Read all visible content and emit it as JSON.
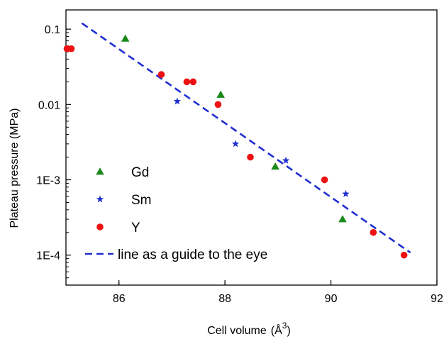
{
  "chart_data": {
    "type": "scatter",
    "title": "",
    "xlabel": "Cell volume",
    "xlabel_unit": "(Å",
    "xlabel_unit_sup": "3",
    "xlabel_unit_close": ")",
    "ylabel": "Plateau pressure (MPa)",
    "xlim": [
      85,
      92
    ],
    "ylim": [
      4e-05,
      0.18
    ],
    "yscale": "log",
    "x_ticks": [
      {
        "value": 86,
        "label": "86"
      },
      {
        "value": 88,
        "label": "88"
      },
      {
        "value": 90,
        "label": "90"
      },
      {
        "value": 92,
        "label": "92"
      }
    ],
    "y_ticks": [
      {
        "value": 0.1,
        "label": "0.1"
      },
      {
        "value": 0.01,
        "label": "0.01"
      },
      {
        "value": 0.001,
        "label": "1E-3"
      },
      {
        "value": 0.0001,
        "label": "1E-4"
      }
    ],
    "legend_position": "bottom-left",
    "series": [
      {
        "name": "Gd",
        "marker": "triangle",
        "color": "#1a8a1a",
        "points": [
          {
            "x": 86.12,
            "y": 0.075
          },
          {
            "x": 87.92,
            "y": 0.0135
          },
          {
            "x": 88.95,
            "y": 0.0015
          },
          {
            "x": 90.22,
            "y": 0.0003
          }
        ]
      },
      {
        "name": "Sm",
        "marker": "star",
        "color": "#1f2fd0",
        "points": [
          {
            "x": 87.1,
            "y": 0.011
          },
          {
            "x": 88.2,
            "y": 0.003
          },
          {
            "x": 89.15,
            "y": 0.0018
          },
          {
            "x": 90.28,
            "y": 0.00065
          }
        ]
      },
      {
        "name": "Y",
        "marker": "circle",
        "color": "#ee1111",
        "points": [
          {
            "x": 85.02,
            "y": 0.055
          },
          {
            "x": 85.1,
            "y": 0.055
          },
          {
            "x": 86.8,
            "y": 0.025
          },
          {
            "x": 87.28,
            "y": 0.02
          },
          {
            "x": 87.4,
            "y": 0.02
          },
          {
            "x": 87.87,
            "y": 0.01
          },
          {
            "x": 88.48,
            "y": 0.002
          },
          {
            "x": 89.88,
            "y": 0.001
          },
          {
            "x": 90.8,
            "y": 0.0002
          },
          {
            "x": 91.38,
            "y": 0.0001
          }
        ]
      }
    ],
    "guide_line": {
      "name": "line as a guide to the eye",
      "color": "#1f2fd0",
      "style": "dashed",
      "points": [
        {
          "x": 85.3,
          "y": 0.12
        },
        {
          "x": 91.5,
          "y": 0.000108
        }
      ]
    }
  }
}
